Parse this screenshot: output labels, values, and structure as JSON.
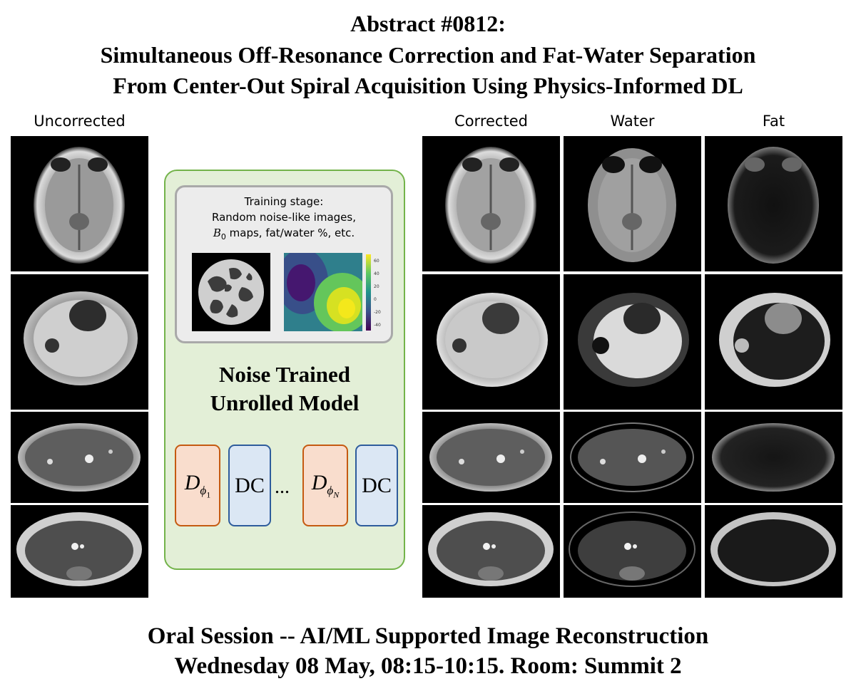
{
  "header": {
    "line1": "Abstract #0812:",
    "line2": "Simultaneous Off-Resonance Correction and Fat-Water Separation",
    "line3": "From Center-Out Spiral Acquisition Using Physics-Informed DL"
  },
  "columns": {
    "uncorrected": "Uncorrected",
    "corrected": "Corrected",
    "water": "Water",
    "fat": "Fat"
  },
  "training": {
    "line1": "Training stage:",
    "line2": "Random noise-like images,",
    "line3_symbol": "B",
    "line3_subscript": "0",
    "line3_rest": " maps, fat/water %, etc.",
    "colorbar_ticks": [
      "60",
      "40",
      "20",
      "0",
      "-20",
      "-40"
    ]
  },
  "model": {
    "line1": "Noise Trained",
    "line2": "Unrolled Model",
    "block1_symbol": "D",
    "block1_sub": "ϕ",
    "block1_subsub": "1",
    "block2": "DC",
    "ellipsis": "...",
    "block3_symbol": "D",
    "block3_sub": "ϕ",
    "block3_subsub": "N",
    "block4": "DC"
  },
  "footer": {
    "line1": "Oral Session -- AI/ML Supported Image Reconstruction",
    "line2": "Wednesday 08 May, 08:15-10:15. Room: Summit 2"
  }
}
